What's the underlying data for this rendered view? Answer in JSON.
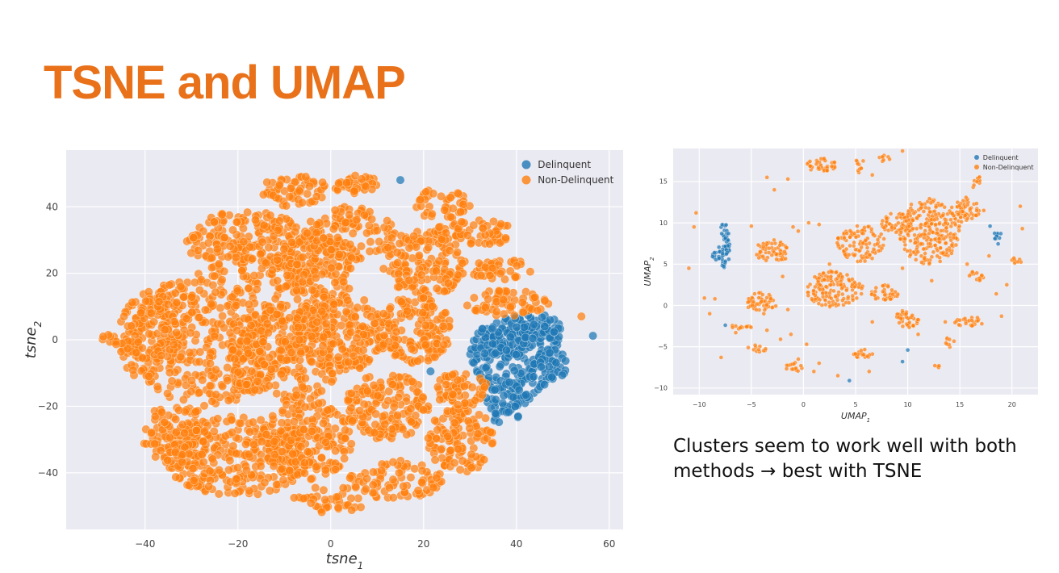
{
  "slide": {
    "title": "TSNE and UMAP",
    "caption": "Clusters seem to work well with both methods → best with TSNE"
  },
  "colors": {
    "title": "#e8711a",
    "delinquent": "#1f77b4",
    "non_delinquent": "#ff7f0e",
    "plot_background": "#eaeaf2",
    "grid": "#ffffff"
  },
  "chart_data": [
    {
      "id": "tsne",
      "type": "scatter",
      "xlabel": "tsne",
      "xlabel_sub": "1",
      "ylabel": "tsne",
      "ylabel_sub": "2",
      "xlim": [
        -57,
        63
      ],
      "ylim": [
        -57,
        57
      ],
      "xticks": [
        -40,
        -20,
        0,
        20,
        40,
        60
      ],
      "yticks": [
        -40,
        -20,
        0,
        20,
        40
      ],
      "grid": true,
      "legend_position": "top-right",
      "series": [
        {
          "name": "Delinquent",
          "color": "#1f77b4",
          "regions": [
            {
              "cx": 40,
              "cy": -5,
              "rx": 10,
              "ry": 12,
              "n": 200
            },
            {
              "cx": 37,
              "cy": 0,
              "rx": 7,
              "ry": 5,
              "n": 60
            },
            {
              "cx": 44,
              "cy": 3,
              "rx": 6,
              "ry": 5,
              "n": 50
            },
            {
              "cx": 38,
              "cy": -19,
              "rx": 5,
              "ry": 7,
              "n": 60
            },
            {
              "cx": 48,
              "cy": -7,
              "rx": 3,
              "ry": 5,
              "n": 25
            }
          ],
          "points": [
            [
              15,
              48
            ],
            [
              56.5,
              1.2
            ],
            [
              21.5,
              -9.5
            ]
          ]
        },
        {
          "name": "Non-Delinquent",
          "color": "#ff7f0e",
          "regions": [
            {
              "cx": -26,
              "cy": 0,
              "rx": 20,
              "ry": 20,
              "n": 450
            },
            {
              "cx": -18,
              "cy": 29,
              "rx": 13,
              "ry": 10,
              "n": 200
            },
            {
              "cx": -4,
              "cy": 20,
              "rx": 9,
              "ry": 11,
              "n": 170
            },
            {
              "cx": -8,
              "cy": 45,
              "rx": 7,
              "ry": 5,
              "n": 60
            },
            {
              "cx": 5,
              "cy": 47,
              "rx": 5,
              "ry": 3,
              "n": 40
            },
            {
              "cx": 4,
              "cy": 32,
              "rx": 10,
              "ry": 8,
              "n": 120
            },
            {
              "cx": 20,
              "cy": 23,
              "rx": 9,
              "ry": 10,
              "n": 150
            },
            {
              "cx": 24,
              "cy": 41,
              "rx": 6,
              "ry": 5,
              "n": 40
            },
            {
              "cx": 31,
              "cy": 32,
              "rx": 9,
              "ry": 4,
              "n": 60
            },
            {
              "cx": 37,
              "cy": 21,
              "rx": 7,
              "ry": 3,
              "n": 40
            },
            {
              "cx": 38,
              "cy": 11,
              "rx": 9,
              "ry": 4,
              "n": 60
            },
            {
              "cx": 2,
              "cy": 2,
              "rx": 10,
              "ry": 12,
              "n": 200
            },
            {
              "cx": 18,
              "cy": 3,
              "rx": 8,
              "ry": 10,
              "n": 150
            },
            {
              "cx": -10,
              "cy": -5,
              "rx": 12,
              "ry": 15,
              "n": 200
            },
            {
              "cx": -20,
              "cy": -35,
              "rx": 16,
              "ry": 12,
              "n": 300
            },
            {
              "cx": -5,
              "cy": -30,
              "rx": 10,
              "ry": 12,
              "n": 180
            },
            {
              "cx": 12,
              "cy": -20,
              "rx": 9,
              "ry": 10,
              "n": 160
            },
            {
              "cx": 28,
              "cy": -30,
              "rx": 7,
              "ry": 10,
              "n": 120
            },
            {
              "cx": 28,
              "cy": -15,
              "rx": 6,
              "ry": 5,
              "n": 60
            },
            {
              "cx": 14,
              "cy": -42,
              "rx": 10,
              "ry": 6,
              "n": 80
            },
            {
              "cx": -38,
              "cy": 4,
              "rx": 8,
              "ry": 10,
              "n": 100
            },
            {
              "cx": -33,
              "cy": -28,
              "rx": 8,
              "ry": 9,
              "n": 110
            },
            {
              "cx": 0,
              "cy": -48,
              "rx": 8,
              "ry": 4,
              "n": 40
            },
            {
              "cx": -47,
              "cy": 0,
              "rx": 3,
              "ry": 2,
              "n": 10
            }
          ],
          "points": [
            [
              54,
              7
            ],
            [
              -49,
              1
            ]
          ]
        }
      ]
    },
    {
      "id": "umap",
      "type": "scatter",
      "xlabel": "UMAP",
      "xlabel_sub": "1",
      "ylabel": "UMAP",
      "ylabel_sub": "2",
      "xlim": [
        -12.5,
        22.5
      ],
      "ylim": [
        -10.8,
        19
      ],
      "xticks": [
        -10,
        -5,
        0,
        5,
        10,
        15,
        20
      ],
      "yticks": [
        -10,
        -5,
        0,
        5,
        10,
        15
      ],
      "grid": true,
      "legend_position": "top-right",
      "series": [
        {
          "name": "Delinquent",
          "color": "#1f77b4",
          "regions": [
            {
              "cx": -7.6,
              "cy": 7.2,
              "rx": 0.55,
              "ry": 2.8,
              "n": 60
            },
            {
              "cx": -8.5,
              "cy": 6,
              "rx": 0.5,
              "ry": 0.6,
              "n": 10
            },
            {
              "cx": 18.5,
              "cy": 8.2,
              "rx": 0.6,
              "ry": 0.8,
              "n": 10
            }
          ],
          "points": [
            [
              17.9,
              9.6
            ],
            [
              10,
              -5.4
            ],
            [
              9.5,
              -6.8
            ],
            [
              4.4,
              -9.1
            ],
            [
              -7.5,
              -2.4
            ]
          ]
        },
        {
          "name": "Non-Delinquent",
          "color": "#ff7f0e",
          "regions": [
            {
              "cx": 12,
              "cy": 9,
              "rx": 3,
              "ry": 4,
              "n": 260
            },
            {
              "cx": 9,
              "cy": 10,
              "rx": 1.6,
              "ry": 1.2,
              "n": 50
            },
            {
              "cx": 15.5,
              "cy": 11.5,
              "rx": 1.4,
              "ry": 1.6,
              "n": 60
            },
            {
              "cx": 5.5,
              "cy": 7.5,
              "rx": 2.3,
              "ry": 2.2,
              "n": 110
            },
            {
              "cx": 3,
              "cy": 2,
              "rx": 2.8,
              "ry": 2.2,
              "n": 150
            },
            {
              "cx": 7.8,
              "cy": 1.5,
              "rx": 1.3,
              "ry": 1,
              "n": 40
            },
            {
              "cx": 10,
              "cy": -1.5,
              "rx": 1.1,
              "ry": 1.2,
              "n": 40
            },
            {
              "cx": -3,
              "cy": 6.5,
              "rx": 1.6,
              "ry": 1.5,
              "n": 60
            },
            {
              "cx": -4,
              "cy": 0.3,
              "rx": 1.4,
              "ry": 1.4,
              "n": 50
            },
            {
              "cx": 1.7,
              "cy": 17,
              "rx": 1.5,
              "ry": 0.8,
              "n": 40
            },
            {
              "cx": 16.5,
              "cy": 3.5,
              "rx": 0.8,
              "ry": 0.7,
              "n": 15
            },
            {
              "cx": 16,
              "cy": -2,
              "rx": 1.6,
              "ry": 0.6,
              "n": 25
            },
            {
              "cx": 5.8,
              "cy": -5.8,
              "rx": 1,
              "ry": 0.6,
              "n": 20
            },
            {
              "cx": -0.8,
              "cy": -7.5,
              "rx": 0.9,
              "ry": 0.7,
              "n": 15
            },
            {
              "cx": -4.2,
              "cy": -5.2,
              "rx": 0.7,
              "ry": 0.5,
              "n": 10
            },
            {
              "cx": -6,
              "cy": -2.6,
              "rx": 1.2,
              "ry": 0.3,
              "n": 12
            },
            {
              "cx": 20.5,
              "cy": 5.5,
              "rx": 0.6,
              "ry": 0.4,
              "n": 8
            },
            {
              "cx": 16.5,
              "cy": 15,
              "rx": 0.6,
              "ry": 0.8,
              "n": 10
            },
            {
              "cx": 5.4,
              "cy": 17,
              "rx": 0.4,
              "ry": 1,
              "n": 10
            },
            {
              "cx": 7.8,
              "cy": 17.8,
              "rx": 0.6,
              "ry": 0.4,
              "n": 8
            },
            {
              "cx": 12.8,
              "cy": -7.3,
              "rx": 0.3,
              "ry": 0.3,
              "n": 4
            },
            {
              "cx": 14,
              "cy": -4.5,
              "rx": 0.6,
              "ry": 0.6,
              "n": 8
            }
          ],
          "points": [
            [
              -10.3,
              11.2
            ],
            [
              -10.5,
              9.5
            ],
            [
              -11,
              4.5
            ],
            [
              -8.5,
              0.8
            ],
            [
              -9,
              -1
            ],
            [
              -5,
              9.6
            ],
            [
              -3.5,
              15.5
            ],
            [
              -2.8,
              14
            ],
            [
              -1.5,
              15.3
            ],
            [
              -1,
              9.5
            ],
            [
              0.5,
              10
            ],
            [
              1.5,
              9.8
            ],
            [
              -0.5,
              9
            ],
            [
              2.5,
              5
            ],
            [
              -2,
              3.5
            ],
            [
              -1.5,
              -0.5
            ],
            [
              -3.5,
              -3
            ],
            [
              -6.5,
              -3.3
            ],
            [
              -1.2,
              -3.5
            ],
            [
              -0.5,
              -6.5
            ],
            [
              1,
              -8
            ],
            [
              1.5,
              -7
            ],
            [
              3.3,
              -8.5
            ],
            [
              6.3,
              -8
            ],
            [
              11,
              -3.5
            ],
            [
              13.6,
              -2
            ],
            [
              9.5,
              18.7
            ],
            [
              6.6,
              15.8
            ],
            [
              20.8,
              12
            ],
            [
              21,
              9.3
            ],
            [
              19,
              -1.3
            ],
            [
              18.5,
              1.4
            ],
            [
              19.5,
              2.5
            ],
            [
              17.3,
              11.5
            ],
            [
              17.8,
              6
            ],
            [
              6.6,
              -2
            ],
            [
              12.3,
              3
            ],
            [
              14.2,
              6.3
            ],
            [
              15.7,
              5
            ],
            [
              9.5,
              4.5
            ],
            [
              -2.2,
              -4.1
            ],
            [
              0.3,
              -4.7
            ],
            [
              -7.9,
              -6.3
            ],
            [
              -5.3,
              -5.1
            ],
            [
              -9.5,
              0.9
            ]
          ]
        }
      ]
    }
  ]
}
